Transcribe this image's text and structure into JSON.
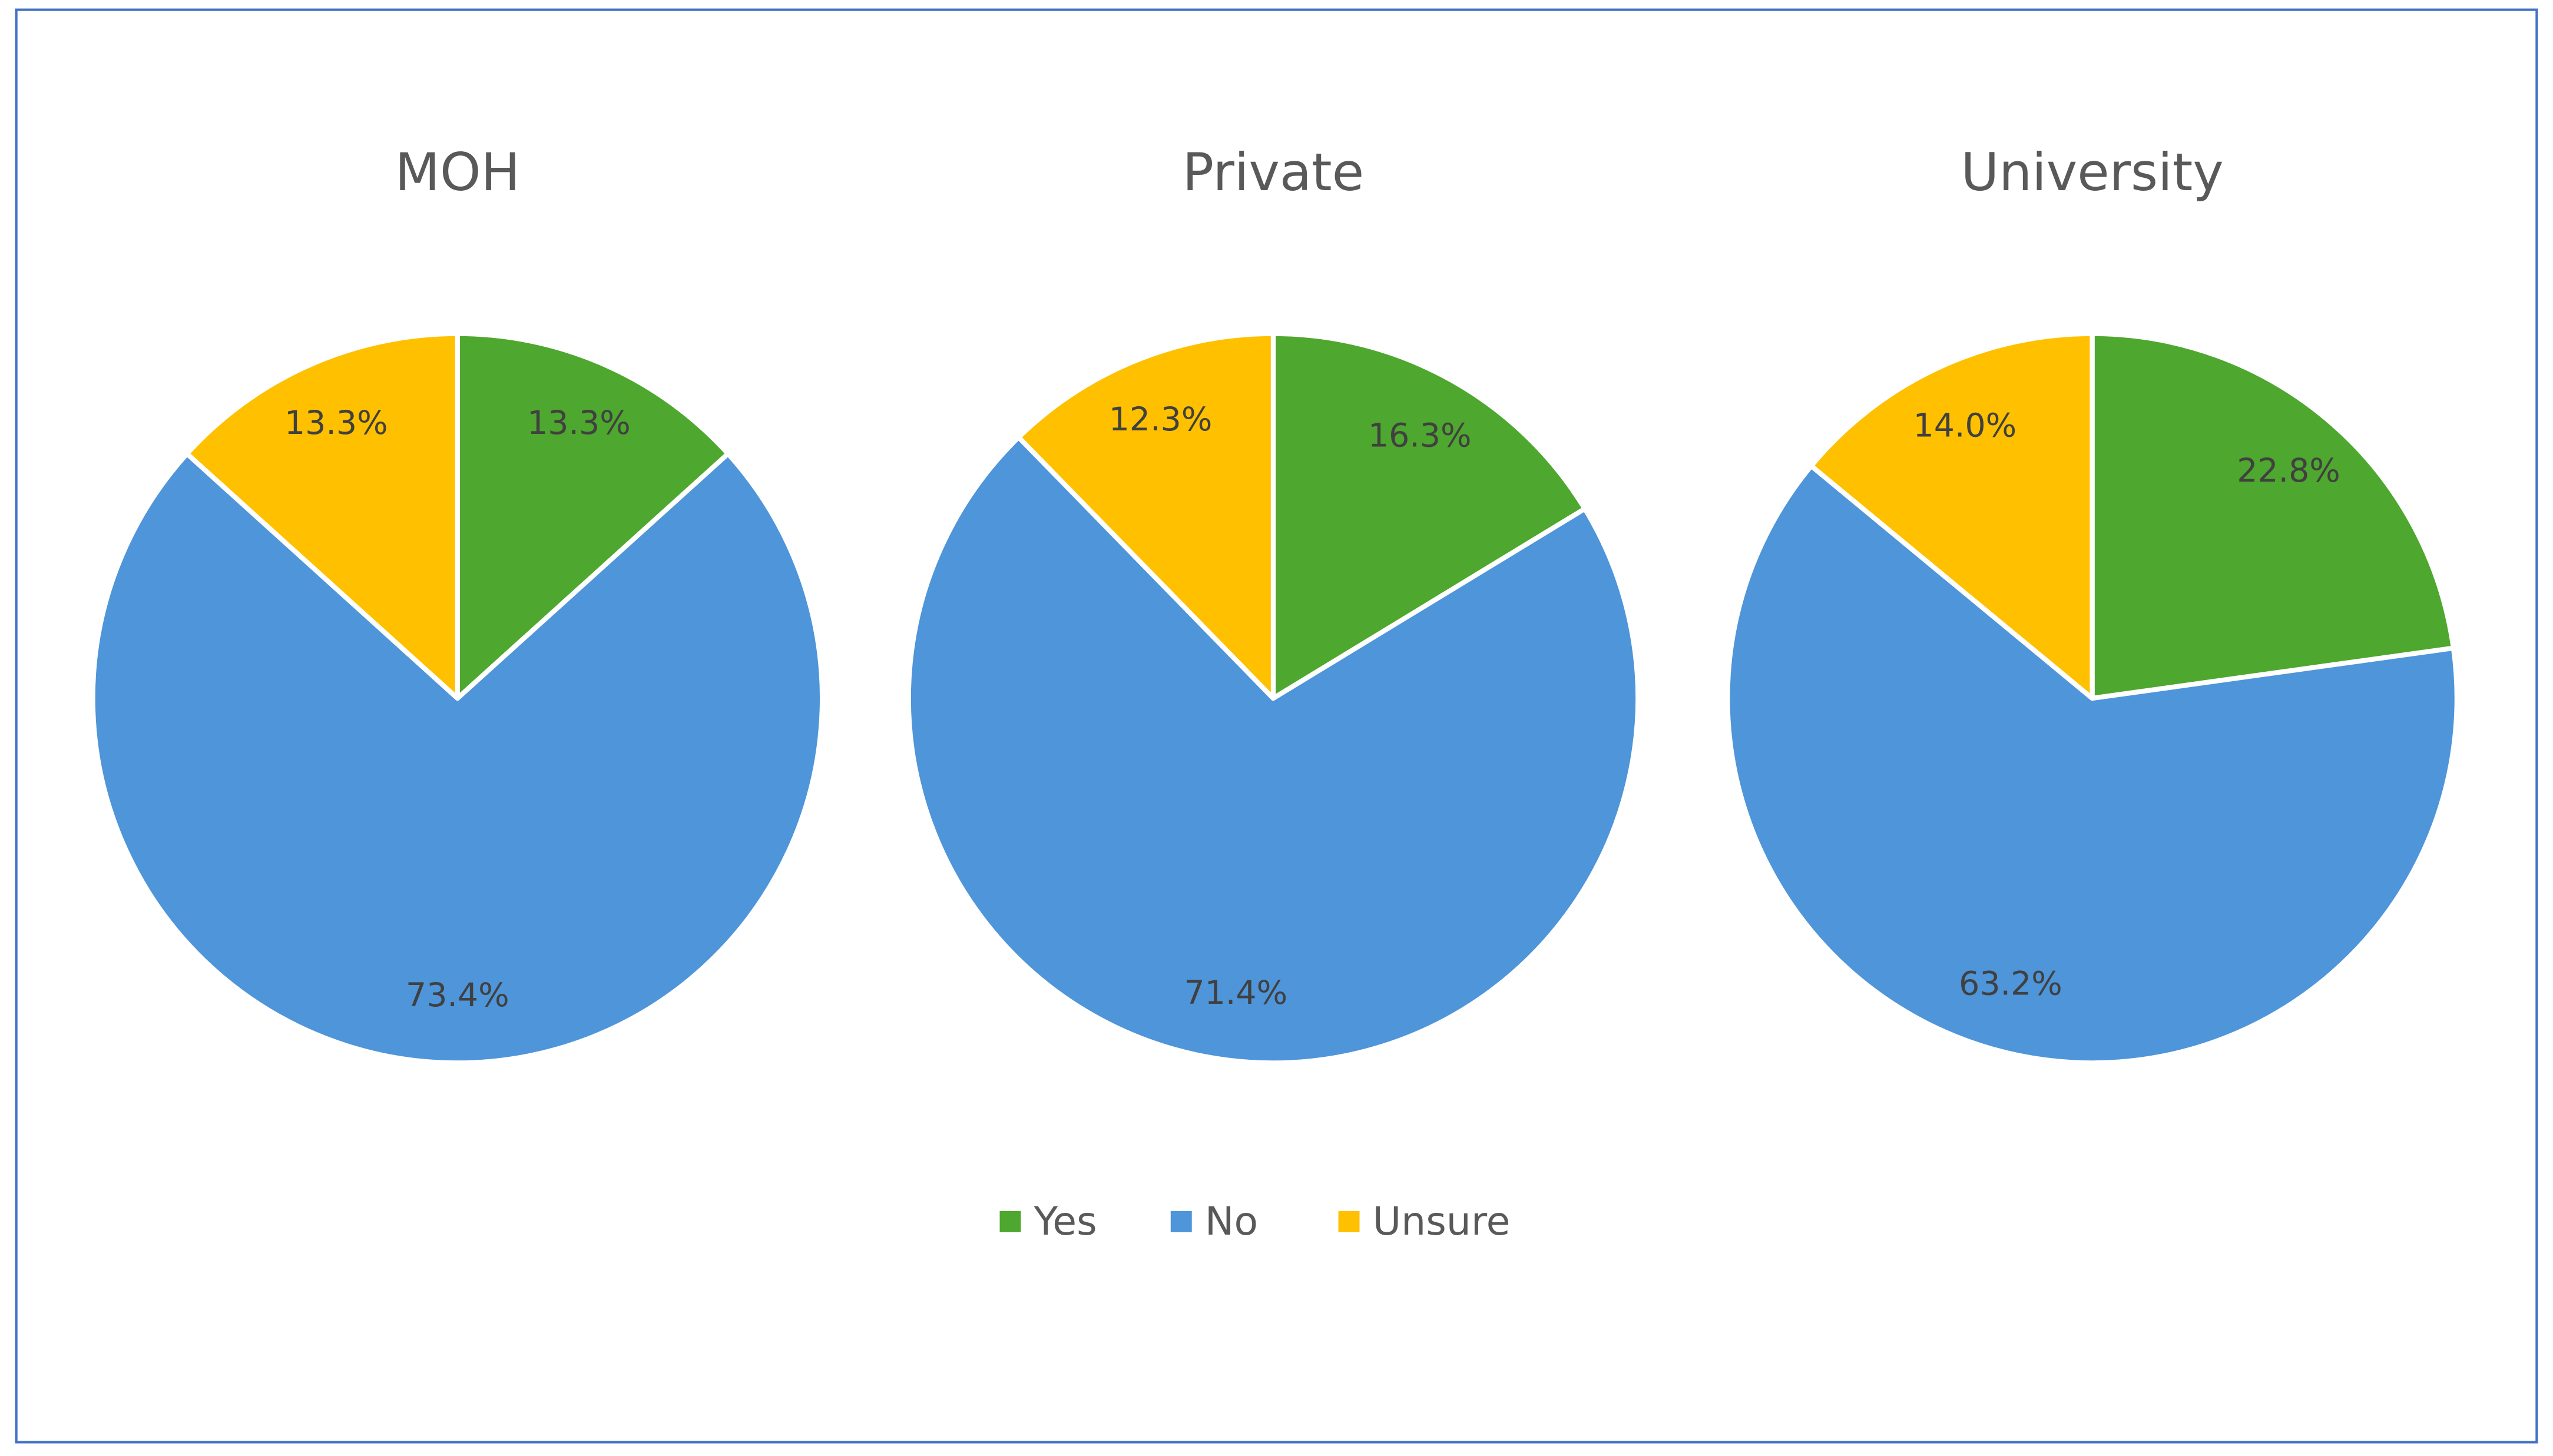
{
  "chart_data": [
    {
      "type": "pie",
      "title": "MOH",
      "categories": [
        "Yes",
        "No",
        "Unsure"
      ],
      "values": [
        13.3,
        73.4,
        13.3
      ],
      "value_labels": [
        "13.3%",
        "73.4%",
        "13.3%"
      ],
      "colors": [
        "#4ea72e",
        "#4e95d9",
        "#ffc000"
      ]
    },
    {
      "type": "pie",
      "title": "Private",
      "categories": [
        "Yes",
        "No",
        "Unsure"
      ],
      "values": [
        16.3,
        71.4,
        12.3
      ],
      "value_labels": [
        "16.3%",
        "71.4%",
        "12.3%"
      ],
      "colors": [
        "#4ea72e",
        "#4e95d9",
        "#ffc000"
      ]
    },
    {
      "type": "pie",
      "title": "University",
      "categories": [
        "Yes",
        "No",
        "Unsure"
      ],
      "values": [
        22.8,
        63.2,
        14.0
      ],
      "value_labels": [
        "22.8%",
        "63.2%",
        "14.0%"
      ],
      "colors": [
        "#4ea72e",
        "#4e95d9",
        "#ffc000"
      ]
    }
  ]
}
